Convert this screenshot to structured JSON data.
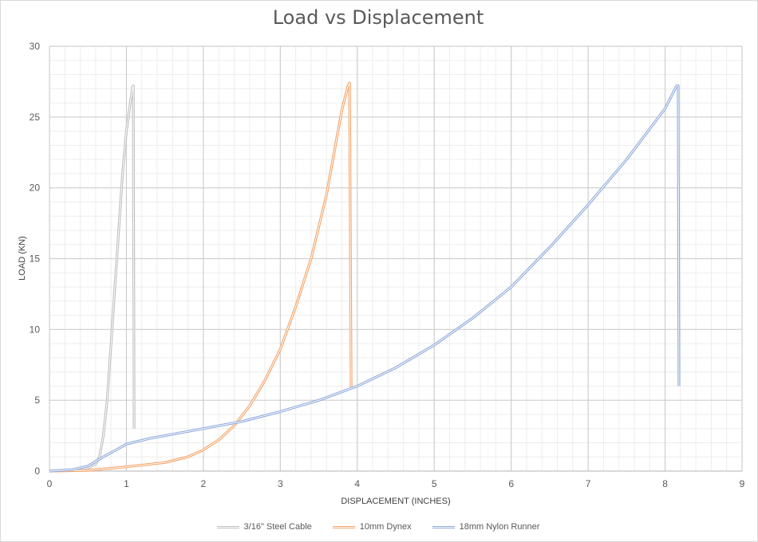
{
  "chart_data": {
    "type": "line",
    "title": "Load vs Displacement",
    "xlabel": "DISPLACEMENT (INCHES)",
    "ylabel": "LOAD (KN)",
    "xlim": [
      0,
      9
    ],
    "ylim": [
      0,
      30
    ],
    "x_ticks": [
      "0",
      "1",
      "2",
      "3",
      "4",
      "5",
      "6",
      "7",
      "8",
      "9"
    ],
    "y_ticks": [
      "0",
      "5",
      "10",
      "15",
      "20",
      "25",
      "30"
    ],
    "grid": true,
    "legend_position": "bottom",
    "series": [
      {
        "name": "3/16\" Steel Cable",
        "color": "#bfbfbf",
        "points": [
          [
            0,
            0
          ],
          [
            0.3,
            0.05
          ],
          [
            0.5,
            0.2
          ],
          [
            0.6,
            0.5
          ],
          [
            0.65,
            1.0
          ],
          [
            0.7,
            2.5
          ],
          [
            0.75,
            5
          ],
          [
            0.8,
            9
          ],
          [
            0.85,
            13
          ],
          [
            0.9,
            17
          ],
          [
            0.95,
            21
          ],
          [
            1.0,
            24
          ],
          [
            1.05,
            26
          ],
          [
            1.08,
            27.1
          ],
          [
            1.09,
            27.2
          ],
          [
            1.1,
            3.0
          ]
        ]
      },
      {
        "name": "10mm Dynex",
        "color": "#f4a46a",
        "points": [
          [
            0,
            0
          ],
          [
            0.5,
            0.05
          ],
          [
            1.0,
            0.3
          ],
          [
            1.5,
            0.6
          ],
          [
            1.8,
            1.0
          ],
          [
            2.0,
            1.5
          ],
          [
            2.2,
            2.2
          ],
          [
            2.4,
            3.2
          ],
          [
            2.6,
            4.6
          ],
          [
            2.8,
            6.4
          ],
          [
            3.0,
            8.6
          ],
          [
            3.2,
            11.6
          ],
          [
            3.4,
            15.0
          ],
          [
            3.6,
            19.5
          ],
          [
            3.7,
            22.5
          ],
          [
            3.8,
            25.5
          ],
          [
            3.88,
            27.2
          ],
          [
            3.9,
            27.4
          ],
          [
            3.92,
            5.8
          ]
        ]
      },
      {
        "name": "18mm Nylon Runner",
        "color": "#8faadc",
        "points": [
          [
            0,
            0
          ],
          [
            0.3,
            0.1
          ],
          [
            0.5,
            0.35
          ],
          [
            0.7,
            1.0
          ],
          [
            0.9,
            1.6
          ],
          [
            1.0,
            1.9
          ],
          [
            1.3,
            2.3
          ],
          [
            1.6,
            2.6
          ],
          [
            2.0,
            3.0
          ],
          [
            2.5,
            3.5
          ],
          [
            3.0,
            4.2
          ],
          [
            3.5,
            5.0
          ],
          [
            4.0,
            6.0
          ],
          [
            4.5,
            7.3
          ],
          [
            5.0,
            8.9
          ],
          [
            5.5,
            10.8
          ],
          [
            6.0,
            13.0
          ],
          [
            6.5,
            15.8
          ],
          [
            7.0,
            18.8
          ],
          [
            7.5,
            22.0
          ],
          [
            8.0,
            25.6
          ],
          [
            8.15,
            27.2
          ],
          [
            8.17,
            27.2
          ],
          [
            8.18,
            6.0
          ]
        ]
      }
    ]
  }
}
